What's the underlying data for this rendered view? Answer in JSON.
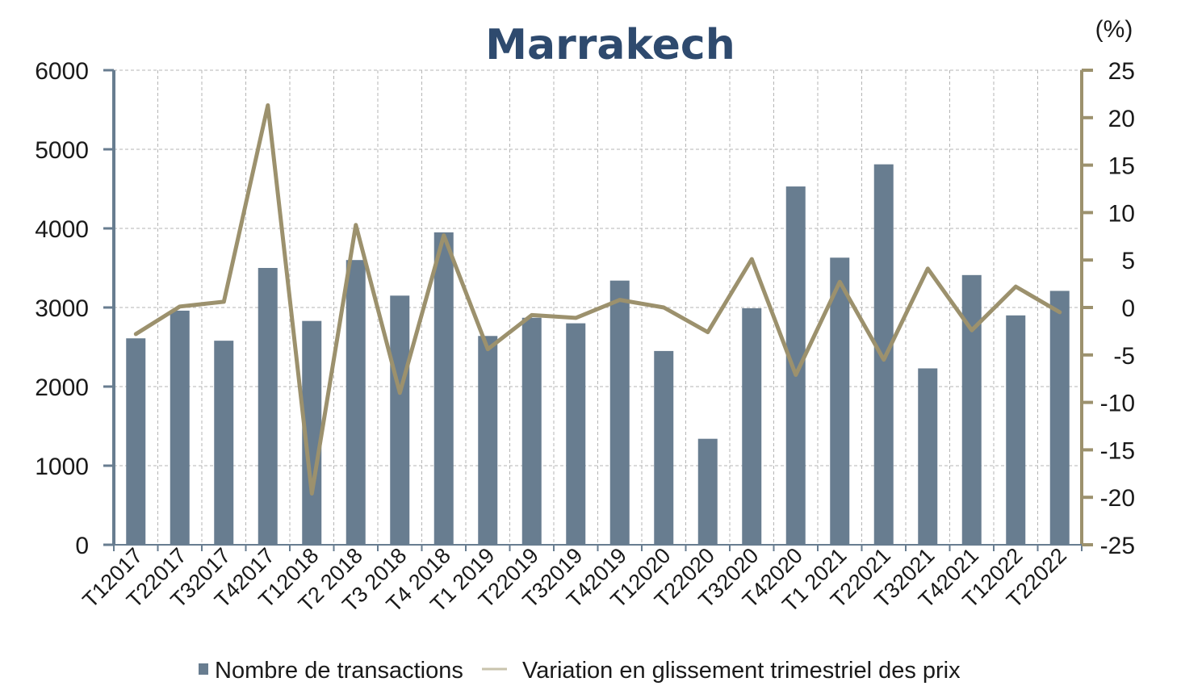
{
  "chart_data": {
    "type": "bar",
    "title": "Marrakech",
    "categories": [
      "T12017",
      "T22017",
      "T32017",
      "T42017",
      "T12018",
      "T2 2018",
      "T3 2018",
      "T4 2018",
      "T1 2019",
      "T22019",
      "T32019",
      "T42019",
      "T12020",
      "T22020",
      "T32020",
      "T42020",
      "T1 2021",
      "T22021",
      "T32021",
      "T42021",
      "T12022",
      "T22022"
    ],
    "series": [
      {
        "name": "Nombre de transactions",
        "type": "bar",
        "axis": "left",
        "color": "#687d90",
        "values": [
          2610,
          2960,
          2580,
          3500,
          2830,
          3600,
          3150,
          3950,
          2640,
          2870,
          2800,
          3340,
          2450,
          1340,
          2990,
          4530,
          3630,
          4810,
          2230,
          3410,
          2900,
          3210
        ]
      },
      {
        "name": "Variation en glissement trimestriel des prix",
        "type": "line",
        "axis": "right",
        "color": "#9c916d",
        "values": [
          -2.8,
          0.1,
          0.6,
          21.3,
          -19.6,
          8.7,
          -9.0,
          7.6,
          -4.4,
          -0.8,
          -1.1,
          0.8,
          0.0,
          -2.6,
          5.1,
          -7.1,
          2.7,
          -5.5,
          4.1,
          -2.4,
          2.2,
          -0.5
        ]
      }
    ],
    "yleft": {
      "min": 0,
      "max": 6000,
      "step": 1000,
      "ticks": [
        "0",
        "1000",
        "2000",
        "3000",
        "4000",
        "5000",
        "6000"
      ]
    },
    "yright": {
      "min": -25,
      "max": 25,
      "step": 5,
      "unit": "(%)",
      "ticks": [
        "-25",
        "-20",
        "-15",
        "-10",
        "-5",
        "0",
        "5",
        "10",
        "15",
        "20",
        "25"
      ]
    },
    "grid": true,
    "legend_position": "bottom"
  }
}
